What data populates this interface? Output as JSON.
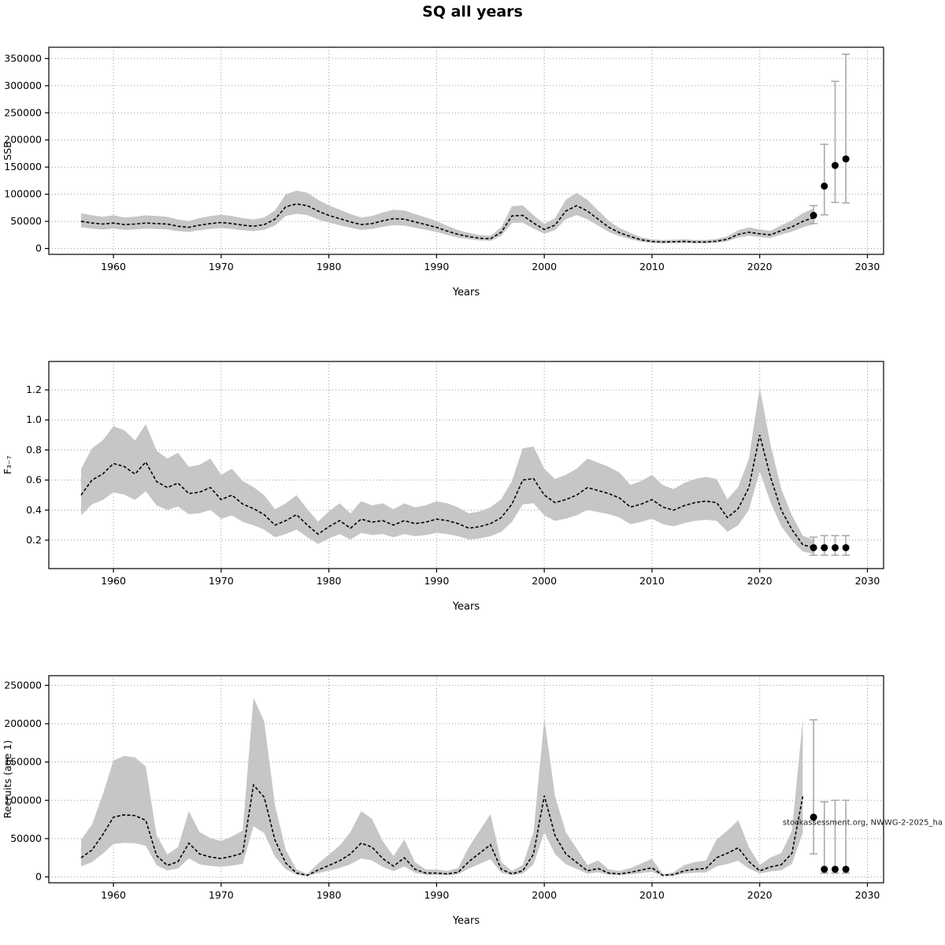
{
  "title": "SQ all years",
  "chart_data": [
    {
      "name": "ssb",
      "type": "line",
      "title": "",
      "xlabel": "Years",
      "ylabel": "SSB",
      "grid": true,
      "legend": "none",
      "xlim": [
        1954,
        2031.5
      ],
      "ylim": [
        0,
        360000
      ],
      "xticks": [
        1960,
        1970,
        1980,
        1990,
        2000,
        2010,
        2020,
        2030
      ],
      "yticks": [
        0,
        50000,
        100000,
        150000,
        200000,
        250000,
        300000,
        350000
      ],
      "ytick_labels": [
        "0",
        "50000",
        "100000",
        "150000",
        "200000",
        "250000",
        "300000",
        "350000"
      ],
      "years": [
        1957,
        1958,
        1959,
        1960,
        1961,
        1962,
        1963,
        1964,
        1965,
        1966,
        1967,
        1968,
        1969,
        1970,
        1971,
        1972,
        1973,
        1974,
        1975,
        1976,
        1977,
        1978,
        1979,
        1980,
        1981,
        1982,
        1983,
        1984,
        1985,
        1986,
        1987,
        1988,
        1989,
        1990,
        1991,
        1992,
        1993,
        1994,
        1995,
        1996,
        1997,
        1998,
        1999,
        2000,
        2001,
        2002,
        2003,
        2004,
        2005,
        2006,
        2007,
        2008,
        2009,
        2010,
        2011,
        2012,
        2013,
        2014,
        2015,
        2016,
        2017,
        2018,
        2019,
        2020,
        2021,
        2022,
        2023,
        2024,
        2025
      ],
      "values": [
        50000,
        47000,
        45000,
        47000,
        44000,
        45000,
        47000,
        46000,
        45000,
        41000,
        39000,
        43000,
        46000,
        48000,
        46000,
        43000,
        41000,
        44000,
        54000,
        77000,
        82000,
        79000,
        69000,
        61000,
        55000,
        49000,
        44000,
        46000,
        51000,
        55000,
        54000,
        49000,
        44000,
        39000,
        32000,
        26000,
        22000,
        19000,
        18000,
        30000,
        60000,
        61000,
        47000,
        35000,
        43000,
        69000,
        79000,
        69000,
        54000,
        39000,
        29000,
        22000,
        16000,
        13000,
        12000,
        12500,
        13000,
        12000,
        12000,
        13500,
        17000,
        26000,
        30000,
        27000,
        25000,
        33000,
        40000,
        50000,
        57000
      ],
      "ci_factor": {
        "lo": 0.78,
        "hi": 1.3
      },
      "forecast": {
        "years": [
          2025,
          2026,
          2027,
          2028
        ],
        "est": [
          61000,
          115000,
          153000,
          165000
        ],
        "lo": [
          46000,
          62000,
          85000,
          84000
        ],
        "hi": [
          79000,
          192000,
          308000,
          358000
        ]
      }
    },
    {
      "name": "fbar",
      "type": "line",
      "title": "",
      "xlabel": "Years",
      "ylabel": "F₃₋₇",
      "grid": true,
      "legend": "none",
      "xlim": [
        1954,
        2031.5
      ],
      "ylim": [
        0.05,
        1.35
      ],
      "xticks": [
        1960,
        1970,
        1980,
        1990,
        2000,
        2010,
        2020,
        2030
      ],
      "yticks": [
        0.2,
        0.4,
        0.6,
        0.8,
        1.0,
        1.2
      ],
      "ytick_labels": [
        "0.2",
        "0.4",
        "0.6",
        "0.8",
        "1.0",
        "1.2"
      ],
      "years": [
        1957,
        1958,
        1959,
        1960,
        1961,
        1962,
        1963,
        1964,
        1965,
        1966,
        1967,
        1968,
        1969,
        1970,
        1971,
        1972,
        1973,
        1974,
        1975,
        1976,
        1977,
        1978,
        1979,
        1980,
        1981,
        1982,
        1983,
        1984,
        1985,
        1986,
        1987,
        1988,
        1989,
        1990,
        1991,
        1992,
        1993,
        1994,
        1995,
        1996,
        1997,
        1998,
        1999,
        2000,
        2001,
        2002,
        2003,
        2004,
        2005,
        2006,
        2007,
        2008,
        2009,
        2010,
        2011,
        2012,
        2013,
        2014,
        2015,
        2016,
        2017,
        2018,
        2019,
        2020,
        2021,
        2022,
        2023,
        2024,
        2025
      ],
      "values": [
        0.5,
        0.6,
        0.64,
        0.71,
        0.69,
        0.64,
        0.72,
        0.59,
        0.55,
        0.58,
        0.51,
        0.52,
        0.55,
        0.47,
        0.5,
        0.44,
        0.41,
        0.37,
        0.3,
        0.33,
        0.37,
        0.3,
        0.24,
        0.29,
        0.33,
        0.28,
        0.34,
        0.32,
        0.33,
        0.3,
        0.33,
        0.31,
        0.32,
        0.34,
        0.33,
        0.31,
        0.28,
        0.29,
        0.31,
        0.35,
        0.44,
        0.6,
        0.61,
        0.5,
        0.45,
        0.47,
        0.5,
        0.55,
        0.53,
        0.51,
        0.48,
        0.42,
        0.44,
        0.47,
        0.42,
        0.4,
        0.43,
        0.45,
        0.46,
        0.45,
        0.35,
        0.41,
        0.55,
        0.9,
        0.62,
        0.4,
        0.27,
        0.17,
        0.15
      ],
      "ci_factor": {
        "lo": 0.73,
        "hi": 1.35
      },
      "forecast": {
        "years": [
          2025,
          2026,
          2027,
          2028
        ],
        "est": [
          0.15,
          0.15,
          0.15,
          0.15
        ],
        "lo": [
          0.1,
          0.1,
          0.1,
          0.1
        ],
        "hi": [
          0.22,
          0.23,
          0.23,
          0.23
        ]
      }
    },
    {
      "name": "recruits",
      "type": "line",
      "title": "",
      "xlabel": "Years",
      "ylabel": "Recruits (age 1)",
      "grid": true,
      "legend": "none",
      "xlim": [
        1954,
        2031.5
      ],
      "ylim": [
        0,
        255000
      ],
      "xticks": [
        1960,
        1970,
        1980,
        1990,
        2000,
        2010,
        2020,
        2030
      ],
      "yticks": [
        0,
        50000,
        100000,
        150000,
        200000,
        250000
      ],
      "ytick_labels": [
        "0",
        "50000",
        "100000",
        "150000",
        "200000",
        "250000"
      ],
      "years": [
        1957,
        1958,
        1959,
        1960,
        1961,
        1962,
        1963,
        1964,
        1965,
        1966,
        1967,
        1968,
        1969,
        1970,
        1971,
        1972,
        1973,
        1974,
        1975,
        1976,
        1977,
        1978,
        1979,
        1980,
        1981,
        1982,
        1983,
        1984,
        1985,
        1986,
        1987,
        1988,
        1989,
        1990,
        1991,
        1992,
        1993,
        1994,
        1995,
        1996,
        1997,
        1998,
        1999,
        2000,
        2001,
        2002,
        2003,
        2004,
        2005,
        2006,
        2007,
        2008,
        2009,
        2010,
        2011,
        2012,
        2013,
        2014,
        2015,
        2016,
        2017,
        2018,
        2019,
        2020,
        2021,
        2022,
        2023,
        2024
      ],
      "values": [
        25000,
        35000,
        55000,
        78000,
        81000,
        80000,
        74000,
        28000,
        15000,
        20000,
        44000,
        30000,
        26000,
        24000,
        27000,
        31000,
        120000,
        104000,
        48000,
        18000,
        5000,
        2000,
        9000,
        15000,
        21000,
        30000,
        44000,
        39000,
        24000,
        14000,
        25000,
        10000,
        5000,
        5000,
        4000,
        6000,
        20000,
        31000,
        42000,
        10000,
        4000,
        8000,
        30000,
        106000,
        54000,
        30000,
        19000,
        8000,
        11000,
        5000,
        4000,
        6000,
        9000,
        12000,
        2000,
        3000,
        8000,
        10000,
        11000,
        25000,
        31000,
        38000,
        20000,
        8000,
        13000,
        16000,
        31000,
        105000
      ],
      "ci_factor": {
        "lo": 0.55,
        "hi": 1.95
      },
      "forecast": {
        "years": [
          2025,
          2026,
          2027,
          2028
        ],
        "est": [
          78000,
          10000,
          10000,
          10000
        ],
        "lo": [
          30000,
          5000,
          5000,
          5000
        ],
        "hi": [
          205000,
          98000,
          100000,
          100000
        ]
      },
      "annotation": {
        "text": "stockassessment.org, NWWG-2-2025_ha",
        "y": 68000
      }
    }
  ]
}
